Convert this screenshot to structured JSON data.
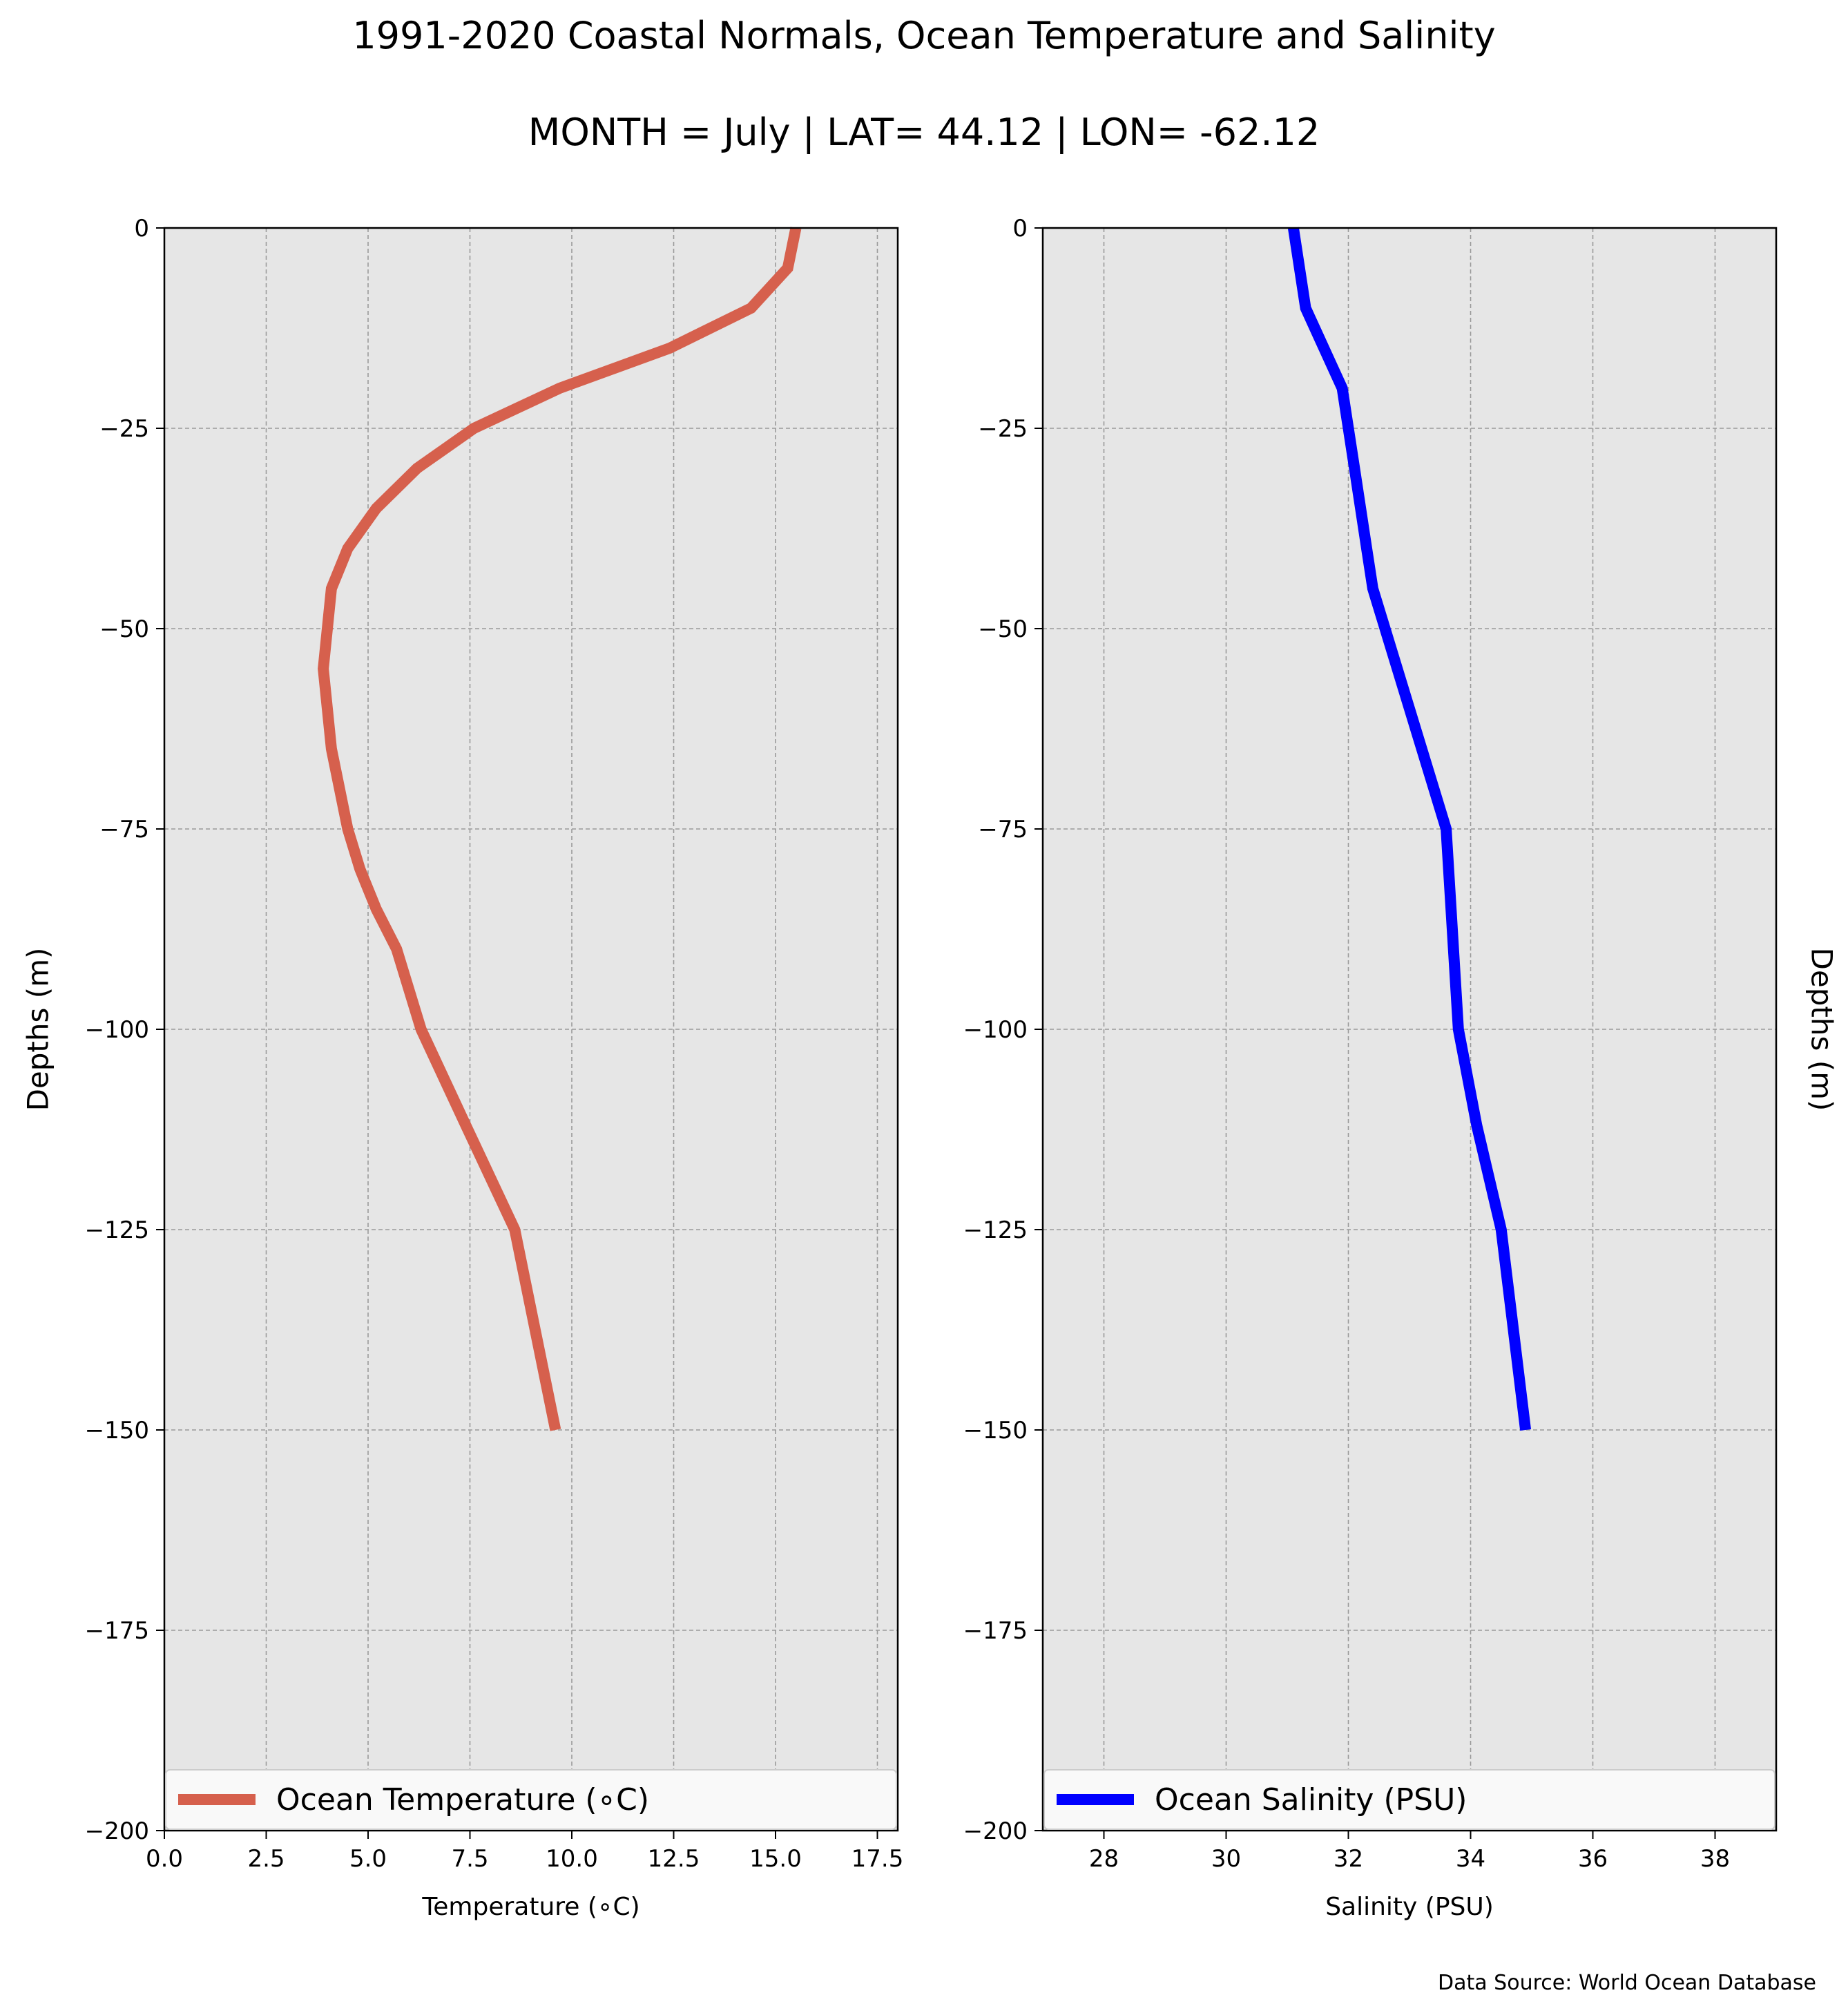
{
  "figure": {
    "title": "1991-2020 Coastal Normals, Ocean Temperature and Salinity",
    "subtitle": "MONTH = July | LAT= 44.12 | LON= -62.12",
    "source_note": "Data Source: World Ocean Database"
  },
  "chart_data": [
    {
      "type": "line",
      "xlabel": "Temperature (∘C)",
      "ylabel": "Depths (m)",
      "xlim": [
        0,
        18
      ],
      "ylim": [
        -200,
        0
      ],
      "xticks": [
        0.0,
        2.5,
        5.0,
        7.5,
        10.0,
        12.5,
        15.0,
        17.5
      ],
      "xtick_labels": [
        "0.0",
        "2.5",
        "5.0",
        "7.5",
        "10.0",
        "12.5",
        "15.0",
        "17.5"
      ],
      "yticks": [
        0,
        -25,
        -50,
        -75,
        -100,
        -125,
        -150,
        -175,
        -200
      ],
      "ytick_labels": [
        "0",
        "−25",
        "−50",
        "−75",
        "−100",
        "−125",
        "−150",
        "−175",
        "−200"
      ],
      "grid": true,
      "legend_position": "bottom",
      "series": [
        {
          "name": "Ocean Temperature (∘C)",
          "color": "#d6604d",
          "x": [
            15.5,
            15.3,
            14.4,
            12.4,
            9.7,
            7.6,
            6.2,
            5.2,
            4.5,
            4.1,
            4.0,
            3.9,
            4.0,
            4.1,
            4.5,
            4.8,
            5.2,
            5.7,
            6.3,
            7.4,
            8.6,
            9.6
          ],
          "y": [
            0,
            -5,
            -10,
            -15,
            -20,
            -25,
            -30,
            -35,
            -40,
            -45,
            -50,
            -55,
            -60,
            -65,
            -75,
            -80,
            -85,
            -90,
            -100,
            -112,
            -125,
            -150
          ]
        }
      ]
    },
    {
      "type": "line",
      "xlabel": "Salinity (PSU)",
      "ylabel": "Depths (m)",
      "xlim": [
        27,
        39
      ],
      "ylim": [
        -200,
        0
      ],
      "xticks": [
        28,
        30,
        32,
        34,
        36,
        38
      ],
      "xtick_labels": [
        "28",
        "30",
        "32",
        "34",
        "36",
        "38"
      ],
      "yticks": [
        0,
        -25,
        -50,
        -75,
        -100,
        -125,
        -150,
        -175,
        -200
      ],
      "ytick_labels": [
        "0",
        "−25",
        "−50",
        "−75",
        "−100",
        "−125",
        "−150",
        "−175",
        "−200"
      ],
      "grid": true,
      "legend_position": "bottom",
      "series": [
        {
          "name": "Ocean Salinity (PSU)",
          "color": "#0000ff",
          "x": [
            31.1,
            31.3,
            31.6,
            31.9,
            32.0,
            32.1,
            32.2,
            32.3,
            32.4,
            32.6,
            32.8,
            33.0,
            33.2,
            33.4,
            33.6,
            33.8,
            34.1,
            34.5,
            34.9
          ],
          "y": [
            0,
            -10,
            -15,
            -20,
            -25,
            -30,
            -35,
            -40,
            -45,
            -50,
            -55,
            -60,
            -65,
            -70,
            -75,
            -100,
            -112,
            -125,
            -150
          ]
        }
      ]
    }
  ]
}
